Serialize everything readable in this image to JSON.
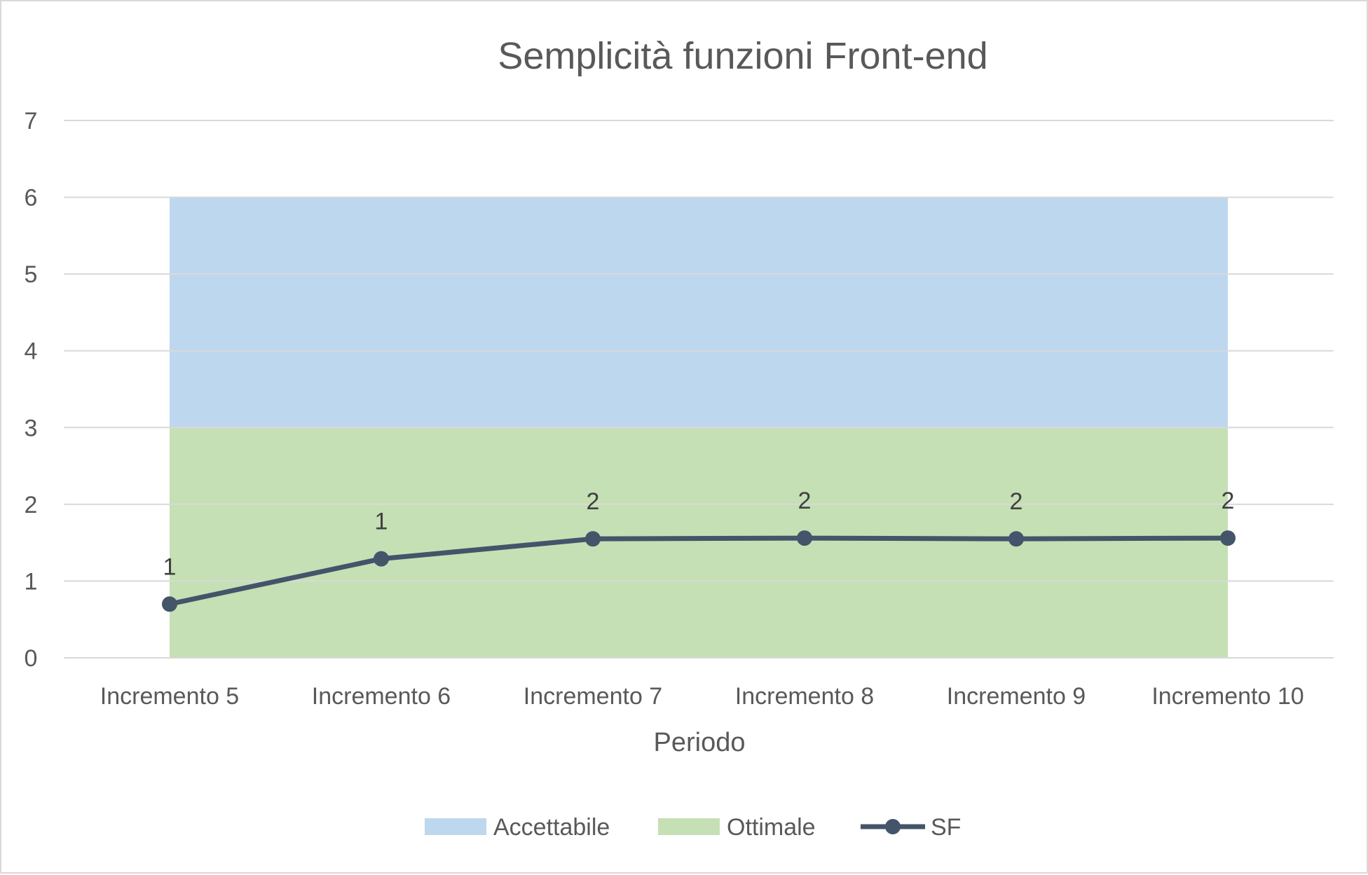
{
  "chart_data": {
    "type": "line",
    "title": "Semplicità funzioni Front-end",
    "xlabel": "Periodo",
    "ylabel": "",
    "categories": [
      "Incremento 5",
      "Incremento 6",
      "Incremento 7",
      "Incremento 8",
      "Incremento 9",
      "Incremento 10"
    ],
    "ylim": [
      0,
      7
    ],
    "yticks": [
      0,
      1,
      2,
      3,
      4,
      5,
      6,
      7
    ],
    "grid": true,
    "legend_position": "bottom",
    "bands": [
      {
        "name": "Ottimale",
        "from": 0,
        "to": 3,
        "color": "#c5e0b4"
      },
      {
        "name": "Accettabile",
        "from": 3,
        "to": 6,
        "color": "#bdd7ee"
      }
    ],
    "series": [
      {
        "name": "SF",
        "color": "#44546a",
        "values": [
          0.7,
          1.29,
          1.55,
          1.56,
          1.55,
          1.56
        ],
        "data_labels": [
          "1",
          "1",
          "2",
          "2",
          "2",
          "2"
        ]
      }
    ],
    "legend": [
      {
        "name": "Accettabile",
        "kind": "band",
        "color": "#bdd7ee"
      },
      {
        "name": "Ottimale",
        "kind": "band",
        "color": "#c5e0b4"
      },
      {
        "name": "SF",
        "kind": "line",
        "color": "#44546a"
      }
    ]
  }
}
